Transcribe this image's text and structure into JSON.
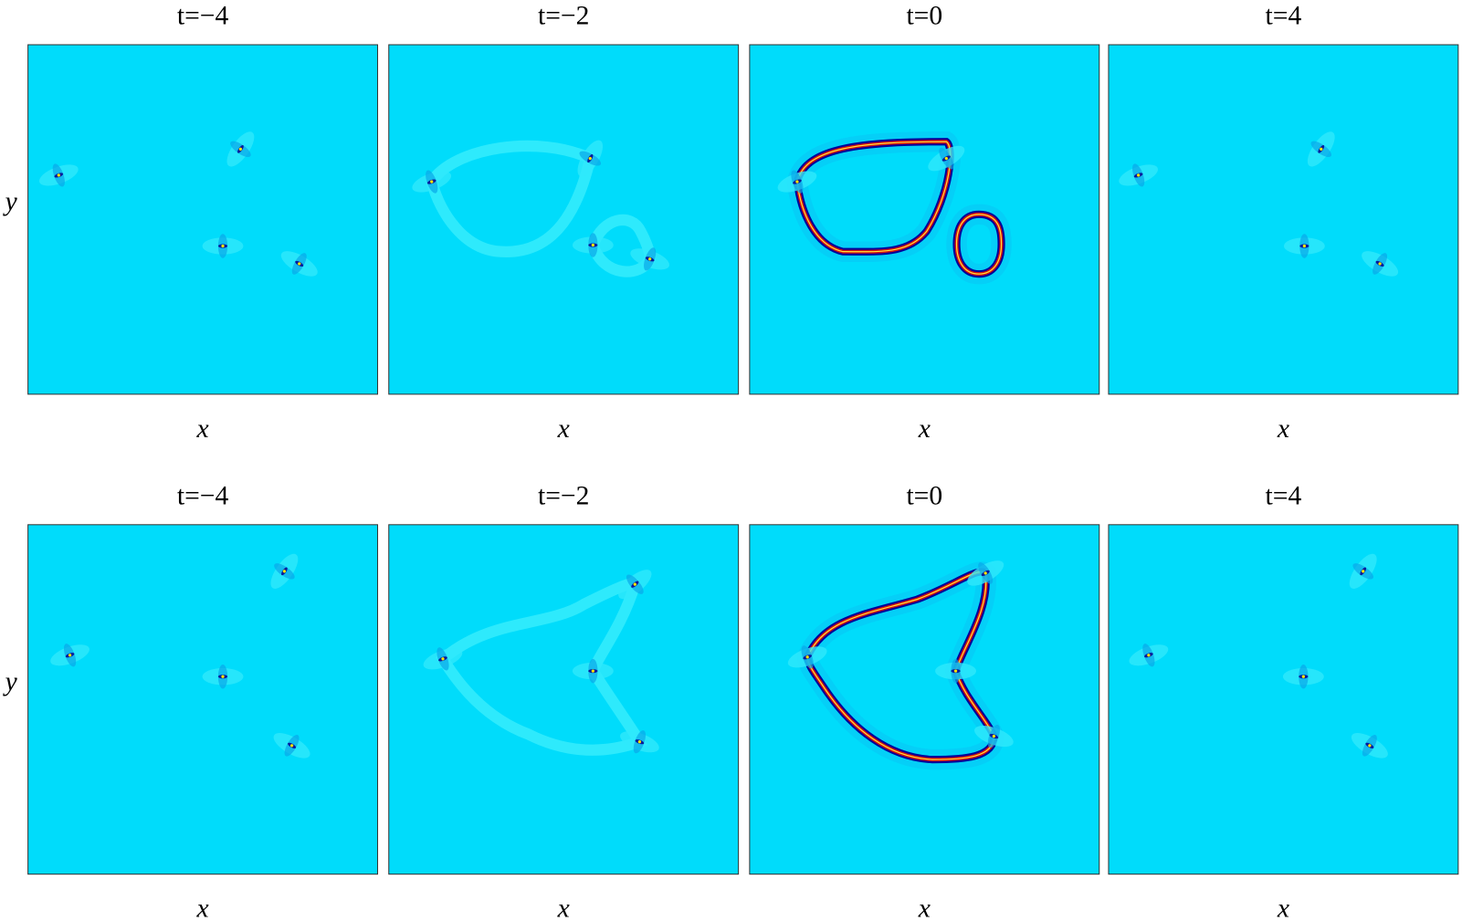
{
  "chart_data": [
    {
      "type": "heatmap",
      "title": "t=−4",
      "xlabel": "x",
      "ylabel": "y"
    },
    {
      "type": "heatmap",
      "title": "t=−2",
      "xlabel": "x"
    },
    {
      "type": "heatmap",
      "title": "t=0",
      "xlabel": "x"
    },
    {
      "type": "heatmap",
      "title": "t=4",
      "xlabel": "x"
    },
    {
      "type": "heatmap",
      "title": "t=−4",
      "xlabel": "x",
      "ylabel": "y"
    },
    {
      "type": "heatmap",
      "title": "t=−2",
      "xlabel": "x"
    },
    {
      "type": "heatmap",
      "title": "t=0",
      "xlabel": "x"
    },
    {
      "type": "heatmap",
      "title": "t=4",
      "xlabel": "x"
    }
  ]
}
